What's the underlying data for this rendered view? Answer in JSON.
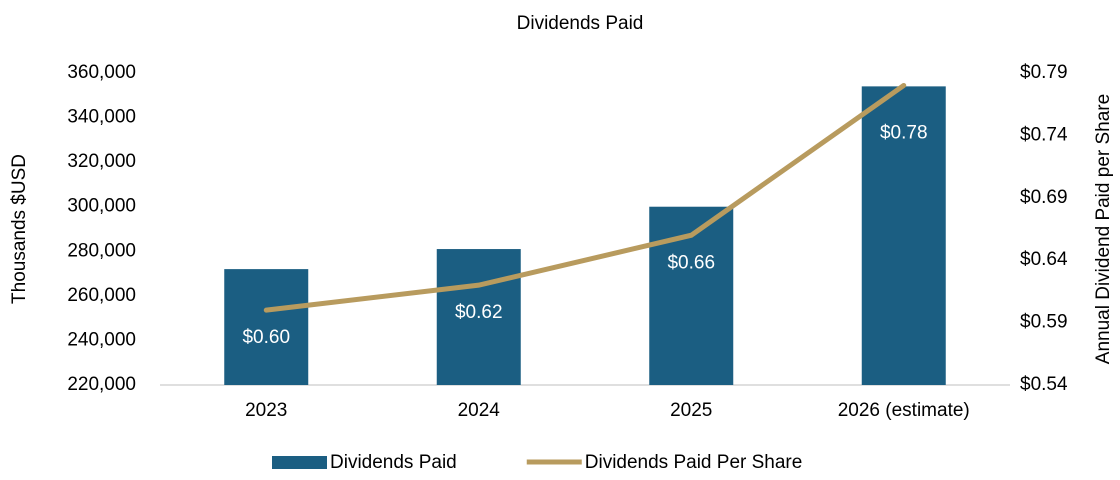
{
  "chart_data": {
    "type": "bar_line",
    "title": "Dividends Paid",
    "ylabel": "Thousands $USD",
    "y2label": "Annual Dividend Paid per Share",
    "categories": [
      "2023",
      "2024",
      "2025",
      "2026 (estimate)"
    ],
    "series": [
      {
        "name": "Dividends Paid",
        "type": "bar",
        "color": "#1b5e82",
        "values": [
          272000,
          281000,
          300000,
          354000
        ]
      },
      {
        "name": "Dividends Paid Per Share",
        "type": "line",
        "axis": "y2",
        "color": "#b89b5e",
        "values": [
          0.6,
          0.62,
          0.66,
          0.78
        ],
        "value_labels": [
          "$0.60",
          "$0.62",
          "$0.66",
          "$0.78"
        ]
      }
    ],
    "ylim": [
      220000,
      360000
    ],
    "yticks": [
      {
        "value": 220000,
        "label": "220,000"
      },
      {
        "value": 240000,
        "label": "240,000"
      },
      {
        "value": 260000,
        "label": "260,000"
      },
      {
        "value": 280000,
        "label": "280,000"
      },
      {
        "value": 300000,
        "label": "300,000"
      },
      {
        "value": 320000,
        "label": "320,000"
      },
      {
        "value": 340000,
        "label": "340,000"
      },
      {
        "value": 360000,
        "label": "360,000"
      }
    ],
    "y2lim": [
      0.54,
      0.79
    ],
    "y2ticks": [
      {
        "value": 0.54,
        "label": "$0.54"
      },
      {
        "value": 0.59,
        "label": "$0.59"
      },
      {
        "value": 0.64,
        "label": "$0.64"
      },
      {
        "value": 0.69,
        "label": "$0.69"
      },
      {
        "value": 0.74,
        "label": "$0.74"
      },
      {
        "value": 0.79,
        "label": "$0.79"
      }
    ],
    "legend": "bottom"
  }
}
